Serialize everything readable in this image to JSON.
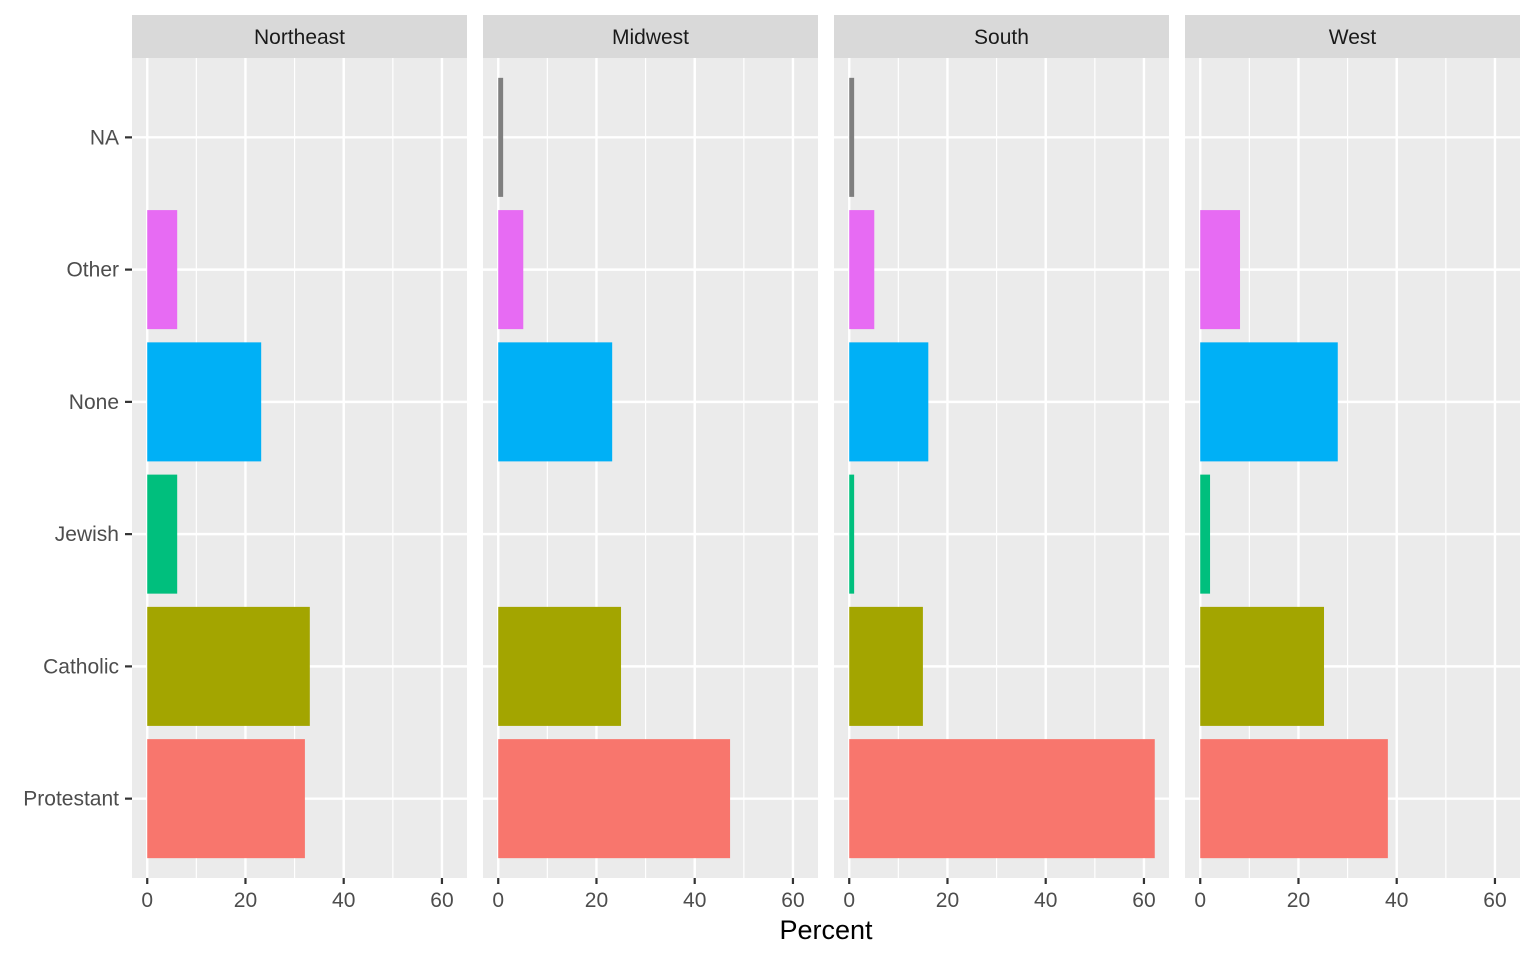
{
  "chart_data": {
    "type": "bar",
    "orientation": "horizontal",
    "faceted_by": "region",
    "title": "",
    "xlabel": "Percent",
    "ylabel": "",
    "xlim": [
      -3.1,
      65.1
    ],
    "x_ticks": [
      0,
      20,
      40,
      60
    ],
    "x_minor_gridlines": [
      10,
      30,
      50
    ],
    "grid": true,
    "legend": "none",
    "categories": [
      "Protestant",
      "Catholic",
      "Jewish",
      "None",
      "Other",
      "NA"
    ],
    "category_colors": {
      "Protestant": "#F8766D",
      "Catholic": "#A3A500",
      "Jewish": "#00BF7D",
      "None": "#00B0F6",
      "Other": "#E76BF3",
      "NA": "#7F7F7F"
    },
    "panels": [
      {
        "name": "Northeast",
        "values": {
          "Protestant": 32.1,
          "Catholic": 33.1,
          "Jewish": 6.1,
          "None": 23.2,
          "Other": 6.1,
          "NA": null
        }
      },
      {
        "name": "Midwest",
        "values": {
          "Protestant": 47.2,
          "Catholic": 25.0,
          "Jewish": null,
          "None": 23.2,
          "Other": 5.1,
          "NA": 1.0
        }
      },
      {
        "name": "South",
        "values": {
          "Protestant": 62.2,
          "Catholic": 15.0,
          "Jewish": 1.0,
          "None": 16.1,
          "Other": 5.1,
          "NA": 1.0
        }
      },
      {
        "name": "West",
        "values": {
          "Protestant": 38.2,
          "Catholic": 25.2,
          "Jewish": 2.0,
          "None": 28.0,
          "Other": 8.1,
          "NA": null
        }
      }
    ],
    "theme_colors": {
      "panel_background": "#EBEBEB",
      "strip_background": "#D9D9D9",
      "gridline": "#FFFFFF",
      "tick": "#333333"
    }
  }
}
